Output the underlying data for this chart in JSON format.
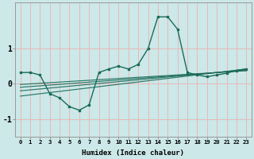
{
  "xlabel": "Humidex (Indice chaleur)",
  "bg_color": "#cce8e8",
  "grid_color": "#e8b8b8",
  "line_color": "#1a6b5a",
  "xlim": [
    -0.5,
    23.5
  ],
  "ylim": [
    -1.5,
    2.3
  ],
  "yticks": [
    -1,
    0,
    1
  ],
  "xticks": [
    0,
    1,
    2,
    3,
    4,
    5,
    6,
    7,
    8,
    9,
    10,
    11,
    12,
    13,
    14,
    15,
    16,
    17,
    18,
    19,
    20,
    21,
    22,
    23
  ],
  "main_line_x": [
    0,
    1,
    2,
    3,
    4,
    5,
    6,
    7,
    8,
    9,
    10,
    11,
    12,
    13,
    14,
    15,
    16,
    17,
    18,
    19,
    20,
    21,
    22,
    23
  ],
  "main_line_y": [
    0.32,
    0.32,
    0.25,
    -0.28,
    -0.4,
    -0.65,
    -0.75,
    -0.6,
    0.32,
    0.42,
    0.5,
    0.42,
    0.55,
    1.0,
    1.9,
    1.9,
    1.55,
    0.32,
    0.25,
    0.2,
    0.25,
    0.3,
    0.38,
    0.42
  ],
  "linear_lines": [
    {
      "x": [
        0,
        23
      ],
      "y": [
        -0.35,
        0.42
      ]
    },
    {
      "x": [
        0,
        23
      ],
      "y": [
        -0.2,
        0.4
      ]
    },
    {
      "x": [
        0,
        23
      ],
      "y": [
        -0.1,
        0.38
      ]
    },
    {
      "x": [
        0,
        23
      ],
      "y": [
        -0.02,
        0.37
      ]
    }
  ]
}
